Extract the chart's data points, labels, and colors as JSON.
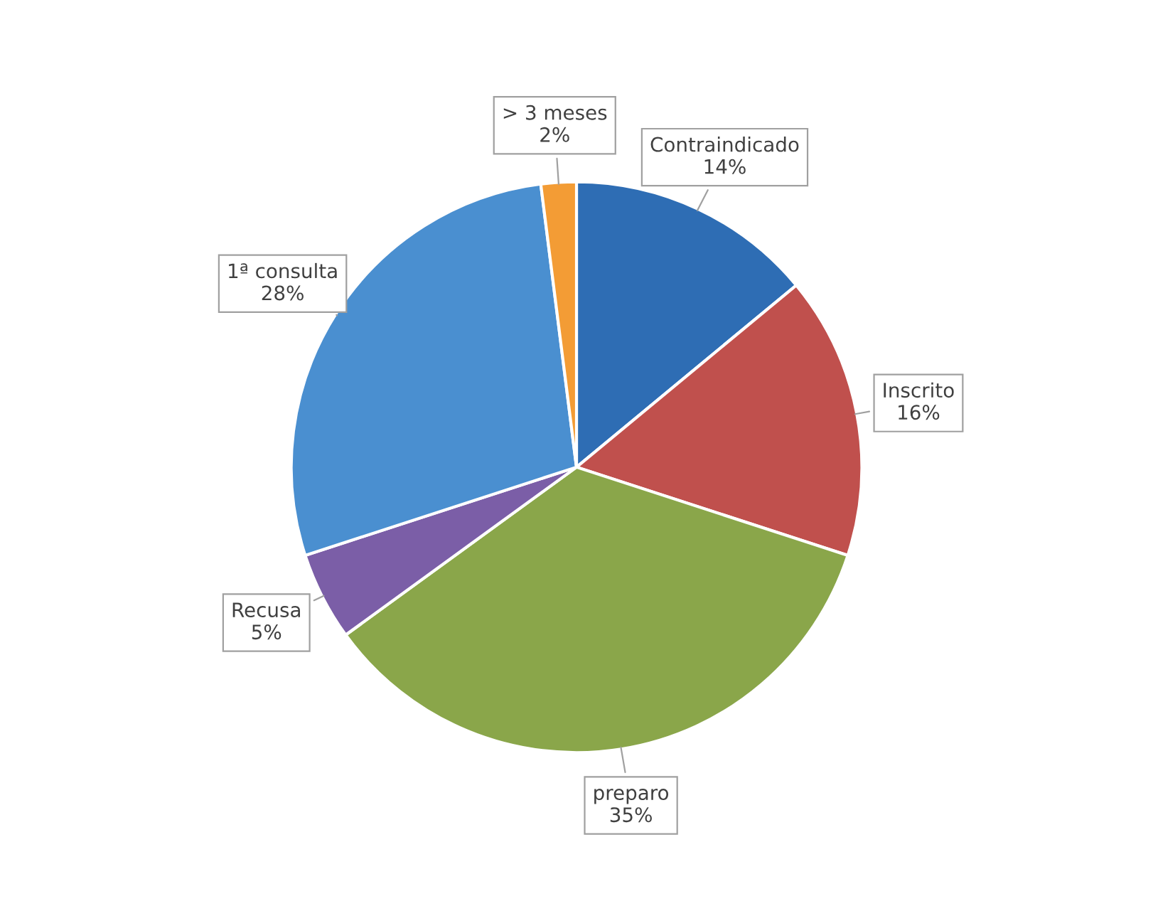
{
  "chart_data": {
    "type": "pie",
    "categories": [
      "Contraindicado",
      "Inscrito",
      "preparo",
      "Recusa",
      "1ª consulta",
      "> 3 meses"
    ],
    "values": [
      14,
      16,
      35,
      5,
      28,
      2
    ],
    "colors": [
      "#2e6db4",
      "#c0504d",
      "#8aa64a",
      "#7b5ea7",
      "#4a8fd0",
      "#f39c35"
    ],
    "value_labels": [
      "14%",
      "16%",
      "35%",
      "5%",
      "28%",
      "2%"
    ],
    "legend": false
  }
}
